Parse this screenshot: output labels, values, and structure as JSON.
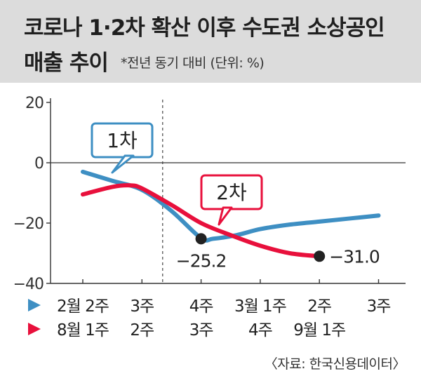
{
  "title_line1": "코로나 1·2차 확산 이후 수도권 소상공인",
  "title_line2": "매출 추이",
  "subtitle": "*전년 동기 대비 (단위: %)",
  "source": "〈자료: 한국신용데이터〉",
  "colors": {
    "series1": "#3e8fc3",
    "series2": "#e8103c",
    "header_bg": "#dcdcdc",
    "marker": "#222222"
  },
  "chart_data": {
    "type": "line",
    "ylim": [
      -40,
      20
    ],
    "yticks": [
      20,
      0,
      -20,
      -40
    ],
    "ytick_labels": [
      "20",
      "0",
      "−20",
      "−40"
    ],
    "x_positions": [
      1,
      2,
      3,
      4,
      5,
      6
    ],
    "series": [
      {
        "name": "1차",
        "x_labels": [
          "2월 2주",
          "3주",
          "4주",
          "3월 1주",
          "2주",
          "3주"
        ],
        "x": [
          1,
          1.5,
          2,
          2.5,
          3,
          3.2,
          3.6,
          4,
          4.5,
          5,
          5.5,
          6
        ],
        "y": [
          -3,
          -6,
          -9,
          -16,
          -25,
          -25.2,
          -24,
          -22,
          -20.5,
          -19.5,
          -18.5,
          -17.5
        ]
      },
      {
        "name": "2차",
        "x_labels": [
          "8월 1주",
          "2주",
          "3주",
          "4주",
          "9월 1주"
        ],
        "x": [
          1,
          1.5,
          1.8,
          2,
          2.5,
          3,
          3.5,
          4,
          4.5,
          5
        ],
        "y": [
          -10.5,
          -8,
          -7.5,
          -8.5,
          -14,
          -20,
          -24,
          -27.5,
          -30,
          -31
        ]
      }
    ],
    "annotations": [
      {
        "text": "−25.2",
        "x": 3,
        "y": -25.2
      },
      {
        "text": "−31.0",
        "x": 5,
        "y": -31
      }
    ],
    "callouts": [
      "1차",
      "2차"
    ],
    "divider_x": 2.35
  }
}
